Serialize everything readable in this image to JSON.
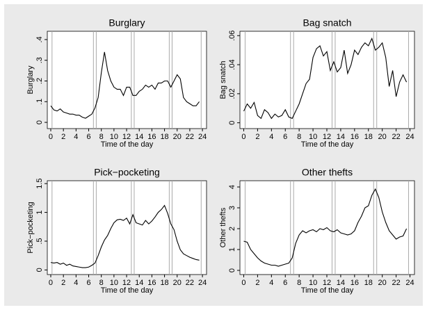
{
  "chart_data": [
    {
      "type": "line",
      "title": "Burglary",
      "xlabel": "Time of the day",
      "ylabel": "Burglary",
      "x": [
        0,
        0.5,
        1,
        1.5,
        2,
        2.5,
        3,
        3.5,
        4,
        4.5,
        5,
        5.5,
        6,
        6.5,
        7,
        7.5,
        8,
        8.5,
        9,
        9.5,
        10,
        10.5,
        11,
        11.5,
        12,
        12.5,
        13,
        13.5,
        14,
        14.5,
        15,
        15.5,
        16,
        16.5,
        17,
        17.5,
        18,
        18.5,
        19,
        19.5,
        20,
        20.5,
        21,
        21.5,
        22,
        22.5,
        23,
        23.5
      ],
      "series": [
        {
          "name": "Burglary",
          "color": "#000000",
          "values": [
            0.08,
            0.06,
            0.055,
            0.065,
            0.05,
            0.045,
            0.04,
            0.04,
            0.035,
            0.035,
            0.025,
            0.02,
            0.03,
            0.04,
            0.07,
            0.12,
            0.24,
            0.34,
            0.25,
            0.2,
            0.17,
            0.16,
            0.16,
            0.13,
            0.17,
            0.17,
            0.13,
            0.13,
            0.15,
            0.16,
            0.18,
            0.17,
            0.18,
            0.16,
            0.19,
            0.19,
            0.2,
            0.2,
            0.17,
            0.2,
            0.23,
            0.21,
            0.12,
            0.1,
            0.09,
            0.08,
            0.08,
            0.1
          ]
        }
      ],
      "xlim": [
        -0.55,
        24.65
      ],
      "xticks": [
        0,
        2,
        4,
        6,
        8,
        10,
        12,
        14,
        16,
        18,
        20,
        22,
        24
      ],
      "ylim": [
        -0.03,
        0.44
      ],
      "yticks": [
        0,
        {
          "value": 0.1,
          "label": ".1"
        },
        {
          "value": 0.2,
          "label": ".2"
        },
        {
          "value": 0.3,
          "label": ".3"
        },
        {
          "value": 0.4,
          "label": ".4"
        }
      ],
      "xlines": [
        0.2,
        6.75,
        7.2,
        12.75,
        13.2,
        18.75,
        19.2,
        23.8
      ]
    },
    {
      "type": "line",
      "title": "Bag snatch",
      "xlabel": "Time of the day",
      "ylabel": "Bag snatch",
      "x": [
        0,
        0.5,
        1,
        1.5,
        2,
        2.5,
        3,
        3.5,
        4,
        4.5,
        5,
        5.5,
        6,
        6.5,
        7,
        7.5,
        8,
        8.5,
        9,
        9.5,
        10,
        10.5,
        11,
        11.5,
        12,
        12.5,
        13,
        13.5,
        14,
        14.5,
        15,
        15.5,
        16,
        16.5,
        17,
        17.5,
        18,
        18.5,
        19,
        19.5,
        20,
        20.5,
        21,
        21.5,
        22,
        22.5,
        23,
        23.5
      ],
      "series": [
        {
          "name": "Bag snatch",
          "color": "#000000",
          "values": [
            0.008,
            0.013,
            0.01,
            0.014,
            0.005,
            0.003,
            0.009,
            0.007,
            0.003,
            0.006,
            0.004,
            0.005,
            0.009,
            0.004,
            0.003,
            0.008,
            0.013,
            0.02,
            0.027,
            0.03,
            0.045,
            0.051,
            0.053,
            0.046,
            0.049,
            0.036,
            0.042,
            0.035,
            0.038,
            0.05,
            0.034,
            0.04,
            0.05,
            0.047,
            0.052,
            0.055,
            0.053,
            0.058,
            0.05,
            0.052,
            0.055,
            0.045,
            0.025,
            0.036,
            0.018,
            0.028,
            0.033,
            0.028
          ]
        }
      ],
      "xlim": [
        -0.55,
        24.65
      ],
      "xticks": [
        0,
        2,
        4,
        6,
        8,
        10,
        12,
        14,
        16,
        18,
        20,
        22,
        24
      ],
      "ylim": [
        -0.004,
        0.063
      ],
      "yticks": [
        0,
        {
          "value": 0.02,
          "label": ".02"
        },
        {
          "value": 0.04,
          "label": ".04"
        },
        {
          "value": 0.06,
          "label": ".06"
        }
      ],
      "xlines": [
        0.2,
        6.75,
        7.2,
        12.75,
        13.2,
        18.75,
        19.2,
        23.8
      ]
    },
    {
      "type": "line",
      "title": "Pick−pocketing",
      "xlabel": "Time of the day",
      "ylabel": "Pick−pocketing",
      "x": [
        0,
        0.5,
        1,
        1.5,
        2,
        2.5,
        3,
        3.5,
        4,
        4.5,
        5,
        5.5,
        6,
        6.5,
        7,
        7.5,
        8,
        8.5,
        9,
        9.5,
        10,
        10.5,
        11,
        11.5,
        12,
        12.5,
        13,
        13.5,
        14,
        14.5,
        15,
        15.5,
        16,
        16.5,
        17,
        17.5,
        18,
        18.5,
        19,
        19.5,
        20,
        20.5,
        21,
        21.5,
        22,
        22.5,
        23,
        23.5
      ],
      "series": [
        {
          "name": "Pick−pocketing",
          "color": "#000000",
          "values": [
            0.13,
            0.12,
            0.13,
            0.1,
            0.12,
            0.08,
            0.1,
            0.07,
            0.06,
            0.05,
            0.04,
            0.04,
            0.05,
            0.08,
            0.12,
            0.25,
            0.4,
            0.52,
            0.6,
            0.72,
            0.82,
            0.87,
            0.88,
            0.86,
            0.9,
            0.8,
            0.96,
            0.82,
            0.8,
            0.78,
            0.86,
            0.8,
            0.85,
            0.92,
            1.0,
            1.05,
            1.12,
            0.98,
            0.8,
            0.7,
            0.5,
            0.35,
            0.28,
            0.25,
            0.22,
            0.2,
            0.18,
            0.17
          ]
        }
      ],
      "xlim": [
        -0.55,
        24.65
      ],
      "xticks": [
        0,
        2,
        4,
        6,
        8,
        10,
        12,
        14,
        16,
        18,
        20,
        22,
        24
      ],
      "ylim": [
        -0.08,
        1.55
      ],
      "yticks": [
        0,
        {
          "value": 0.5,
          "label": ".5"
        },
        1,
        1.5
      ],
      "xlines": [
        0.2,
        6.75,
        7.2,
        12.75,
        13.2,
        18.75,
        19.2,
        23.8
      ]
    },
    {
      "type": "line",
      "title": "Other thefts",
      "xlabel": "Time of the day",
      "ylabel": "Other thefts",
      "x": [
        0,
        0.5,
        1,
        1.5,
        2,
        2.5,
        3,
        3.5,
        4,
        4.5,
        5,
        5.5,
        6,
        6.5,
        7,
        7.5,
        8,
        8.5,
        9,
        9.5,
        10,
        10.5,
        11,
        11.5,
        12,
        12.5,
        13,
        13.5,
        14,
        14.5,
        15,
        15.5,
        16,
        16.5,
        17,
        17.5,
        18,
        18.5,
        19,
        19.5,
        20,
        20.5,
        21,
        21.5,
        22,
        22.5,
        23,
        23.5
      ],
      "series": [
        {
          "name": "Other thefts",
          "color": "#000000",
          "values": [
            1.4,
            1.35,
            1.0,
            0.8,
            0.6,
            0.45,
            0.35,
            0.3,
            0.25,
            0.25,
            0.2,
            0.25,
            0.3,
            0.35,
            0.6,
            1.3,
            1.7,
            1.9,
            1.8,
            1.9,
            1.95,
            1.85,
            2.0,
            1.95,
            2.05,
            1.9,
            1.85,
            1.95,
            1.8,
            1.75,
            1.7,
            1.75,
            1.9,
            2.3,
            2.6,
            3.0,
            3.1,
            3.6,
            3.9,
            3.5,
            2.8,
            2.3,
            1.9,
            1.7,
            1.5,
            1.6,
            1.65,
            2.0
          ]
        }
      ],
      "xlim": [
        -0.55,
        24.65
      ],
      "xticks": [
        0,
        2,
        4,
        6,
        8,
        10,
        12,
        14,
        16,
        18,
        20,
        22,
        24
      ],
      "ylim": [
        -0.2,
        4.3
      ],
      "yticks": [
        0,
        1,
        2,
        3,
        4
      ],
      "xlines": [
        0.2,
        6.75,
        7.2,
        12.75,
        13.2,
        18.75,
        19.2,
        23.8
      ]
    }
  ]
}
